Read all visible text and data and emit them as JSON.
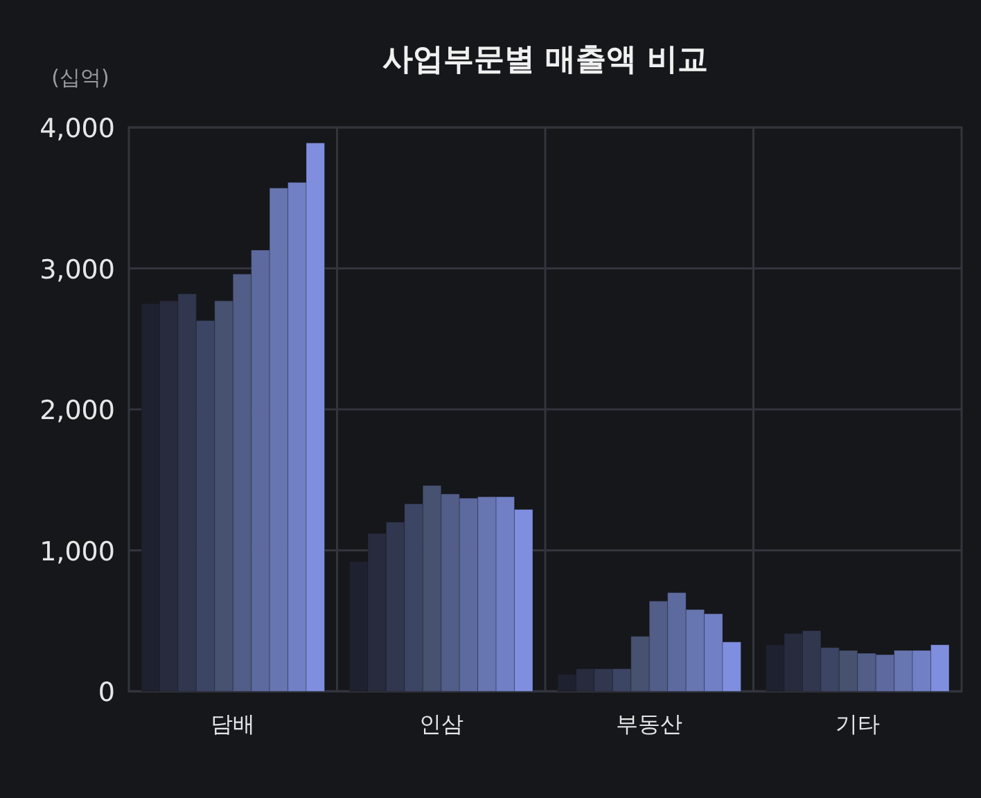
{
  "chart_data": {
    "type": "bar",
    "title": "사업부문별 매출액 비교",
    "ylabel": "(십억)",
    "categories": [
      "담배",
      "인삼",
      "부동산",
      "기타"
    ],
    "series": [
      {
        "color": "#1e2230",
        "values": [
          2750,
          920,
          120,
          330
        ]
      },
      {
        "color": "#272b3d",
        "values": [
          2770,
          1120,
          160,
          410
        ]
      },
      {
        "color": "#30374f",
        "values": [
          2820,
          1200,
          160,
          430
        ]
      },
      {
        "color": "#3c4563",
        "values": [
          2630,
          1330,
          160,
          310
        ]
      },
      {
        "color": "#475170",
        "values": [
          2770,
          1460,
          390,
          290
        ]
      },
      {
        "color": "#525d88",
        "values": [
          2960,
          1400,
          640,
          270
        ]
      },
      {
        "color": "#5d6aa0",
        "values": [
          3130,
          1370,
          700,
          260
        ]
      },
      {
        "color": "#6775b0",
        "values": [
          3570,
          1380,
          580,
          290
        ]
      },
      {
        "color": "#717fc5",
        "values": [
          3610,
          1380,
          550,
          290
        ]
      },
      {
        "color": "#7f8ede",
        "values": [
          3890,
          1290,
          350,
          330
        ]
      }
    ],
    "ylim": [
      0,
      4000
    ],
    "yticks": [
      {
        "value": 0,
        "label": "0"
      },
      {
        "value": 1000,
        "label": "1,000"
      },
      {
        "value": 2000,
        "label": "2,000"
      },
      {
        "value": 3000,
        "label": "3,000"
      },
      {
        "value": 4000,
        "label": "4,000"
      }
    ],
    "grid": true
  }
}
